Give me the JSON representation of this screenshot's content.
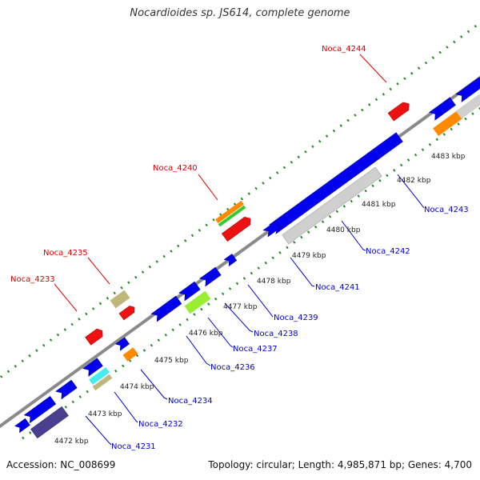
{
  "title": "Nocardioides sp. JS614, complete genome",
  "footer": {
    "accession": "Accession: NC_008699",
    "summary": "Topology: circular; Length: 4,985,871 bp; Genes: 4,700"
  },
  "colors": {
    "backbone": "#8a8a8a",
    "tick": "#1f8a1f",
    "forward_label": "#dd0000",
    "reverse_label": "#0000cc",
    "scale_label": "#222222"
  },
  "scale_labels": [
    "4472 kbp",
    "4473 kbp",
    "4474 kbp",
    "4475 kbp",
    "4476 kbp",
    "4477 kbp",
    "4478 kbp",
    "4479 kbp",
    "4480 kbp",
    "4481 kbp",
    "4482 kbp",
    "4483 kbp"
  ],
  "forward_labels": [
    "Noca_4233",
    "Noca_4235",
    "Noca_4240",
    "Noca_4244"
  ],
  "reverse_labels": [
    "Noca_4231",
    "Noca_4232",
    "Noca_4234",
    "Noca_4236",
    "Noca_4237",
    "Noca_4238",
    "Noca_4239",
    "Noca_4241",
    "Noca_4242",
    "Noca_4243"
  ]
}
